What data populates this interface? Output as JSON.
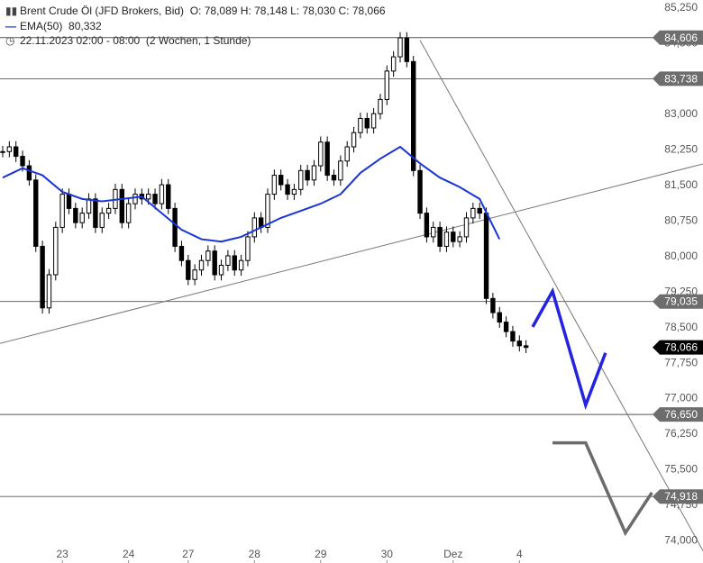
{
  "legend": {
    "symbol_line1": "Brent Crude Öl (JFD Brokers, Bid)",
    "ohlc": "O: 78,089   H: 78,148   L: 78,030   C: 78,066",
    "ema_label": "EMA(50)",
    "ema_value": "80,332",
    "range": "22.11.2023 02:00 - 08:00",
    "period": "(2 Wochen, 1 Stunde)"
  },
  "colors": {
    "candle": "#000000",
    "ema": "#1a35d6",
    "forecast_blue": "#2323e0",
    "forecast_gray": "#6b6b6b",
    "level_line": "#555555",
    "badge": "#6d6d6d",
    "last_badge": "#000000"
  },
  "chart_data": {
    "type": "line",
    "title": "Brent Crude Öl (JFD Brokers, Bid)",
    "xlabel": "",
    "ylabel": "",
    "ylim": [
      73.8,
      85.4
    ],
    "yticks": [
      85.25,
      84.5,
      83.75,
      83.0,
      82.25,
      81.5,
      80.75,
      80.0,
      79.25,
      78.5,
      77.75,
      77.0,
      76.25,
      75.5,
      74.75,
      74.0
    ],
    "ytick_labels": [
      "85,250",
      "84,500",
      "83,750",
      "83,000",
      "82,250",
      "81,500",
      "80,750",
      "80,000",
      "79,250",
      "78,500",
      "77,750",
      "77,000",
      "76,250",
      "75,500",
      "74,750",
      "74,000"
    ],
    "xtick_labels": [
      "23",
      "24",
      "27",
      "28",
      "29",
      "30",
      "Dez",
      "4"
    ],
    "levels": [
      {
        "value": 84.606,
        "label": "84,606"
      },
      {
        "value": 83.738,
        "label": "83,738"
      },
      {
        "value": 79.035,
        "label": "79,035"
      },
      {
        "value": 76.65,
        "label": "76,650"
      },
      {
        "value": 74.918,
        "label": "74,918"
      }
    ],
    "last_price": {
      "value": 78.066,
      "label": "78,066"
    },
    "series": [
      {
        "name": "Brent Crude Öl",
        "x": [
          0,
          1,
          2,
          3,
          4,
          5,
          6,
          7,
          8,
          9,
          10,
          11,
          12,
          13,
          14,
          15,
          16,
          17,
          18,
          19,
          20,
          21,
          22,
          23,
          24,
          25,
          26,
          27,
          28,
          29,
          30,
          31,
          32,
          33,
          34,
          35,
          36,
          37,
          38,
          39,
          40,
          41,
          42,
          43,
          44,
          45,
          46,
          47,
          48,
          49,
          50,
          51,
          52,
          53,
          54,
          55,
          56,
          57,
          58,
          59,
          60,
          61,
          62,
          63,
          64,
          65,
          66,
          67,
          68,
          69,
          70,
          71,
          72,
          73,
          74,
          75,
          76,
          77,
          78,
          79
        ],
        "values": [
          82.2,
          82.3,
          82.1,
          81.9,
          81.6,
          80.2,
          78.9,
          79.6,
          80.6,
          81.3,
          81.0,
          80.7,
          80.9,
          81.2,
          80.6,
          80.9,
          81.0,
          81.4,
          80.7,
          81.1,
          81.3,
          81.2,
          81.3,
          81.1,
          81.5,
          81.0,
          80.2,
          79.9,
          79.5,
          79.7,
          79.9,
          80.1,
          79.6,
          79.8,
          80.0,
          79.7,
          79.9,
          80.4,
          80.8,
          80.6,
          81.3,
          81.7,
          81.5,
          81.3,
          81.4,
          81.8,
          81.6,
          81.9,
          82.4,
          81.7,
          81.6,
          82.0,
          82.3,
          82.6,
          82.9,
          82.7,
          83.0,
          83.3,
          83.9,
          84.2,
          84.6,
          84.1,
          81.8,
          80.9,
          80.4,
          80.6,
          80.2,
          80.5,
          80.3,
          80.4,
          80.8,
          81.0,
          80.9,
          79.1,
          78.8,
          78.6,
          78.4,
          78.2,
          78.1,
          78.066
        ]
      },
      {
        "name": "EMA(50)",
        "x": [
          0,
          3,
          6,
          9,
          12,
          15,
          18,
          21,
          24,
          27,
          30,
          33,
          36,
          39,
          42,
          45,
          48,
          51,
          54,
          57,
          60,
          63,
          66,
          69,
          72,
          75
        ],
        "values": [
          81.65,
          81.85,
          81.7,
          81.35,
          81.2,
          81.15,
          81.2,
          81.25,
          80.9,
          80.55,
          80.35,
          80.3,
          80.4,
          80.6,
          80.8,
          80.95,
          81.1,
          81.3,
          81.75,
          82.05,
          82.3,
          81.95,
          81.65,
          81.45,
          81.2,
          80.35
        ]
      }
    ],
    "forecast_blue": {
      "x": [
        80,
        83,
        88,
        91
      ],
      "values": [
        78.5,
        79.25,
        76.85,
        77.95
      ]
    },
    "forecast_gray": {
      "x": [
        83,
        88,
        94,
        98
      ],
      "values": [
        76.05,
        76.05,
        74.15,
        75.0
      ]
    },
    "trendlines": [
      {
        "x": [
          -6,
          106
        ],
        "values": [
          77.95,
          81.95
        ]
      },
      {
        "x": [
          63,
          106
        ],
        "values": [
          84.55,
          73.7
        ]
      }
    ],
    "xtick_positions": [
      9,
      19,
      28,
      38,
      48,
      58,
      68,
      78
    ]
  }
}
